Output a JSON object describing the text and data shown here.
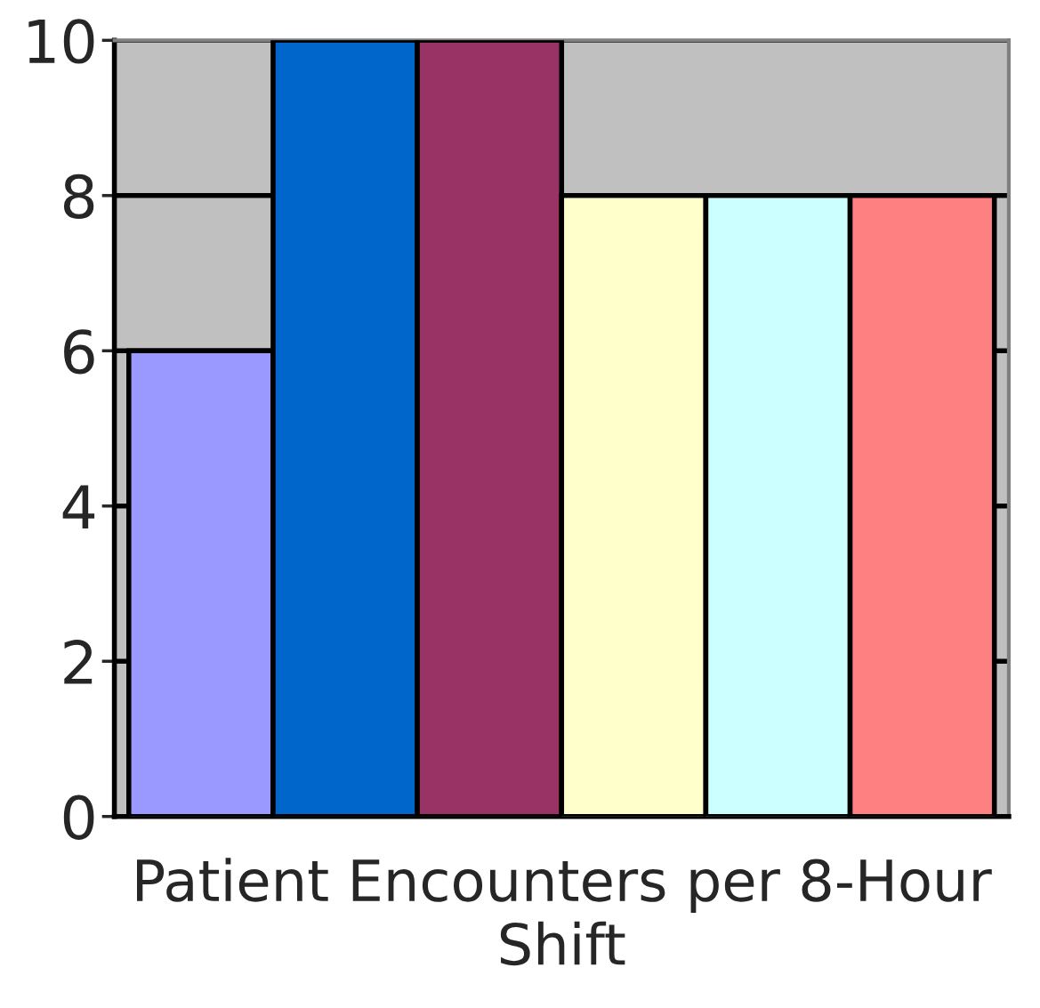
{
  "chart_data": {
    "type": "bar",
    "xlabel": "Patient Encounters per 8-Hour Shift",
    "categories": [
      null,
      null,
      null,
      null,
      null,
      null
    ],
    "values": [
      6,
      10,
      10,
      8,
      8,
      8
    ],
    "colors": [
      "#9999ff",
      "#0066cc",
      "#993366",
      "#ffffcc",
      "#ccffff",
      "#ff8080"
    ],
    "ylim": [
      0,
      10
    ],
    "yticks": [
      0,
      2,
      4,
      6,
      8,
      10
    ],
    "grid": "y"
  }
}
